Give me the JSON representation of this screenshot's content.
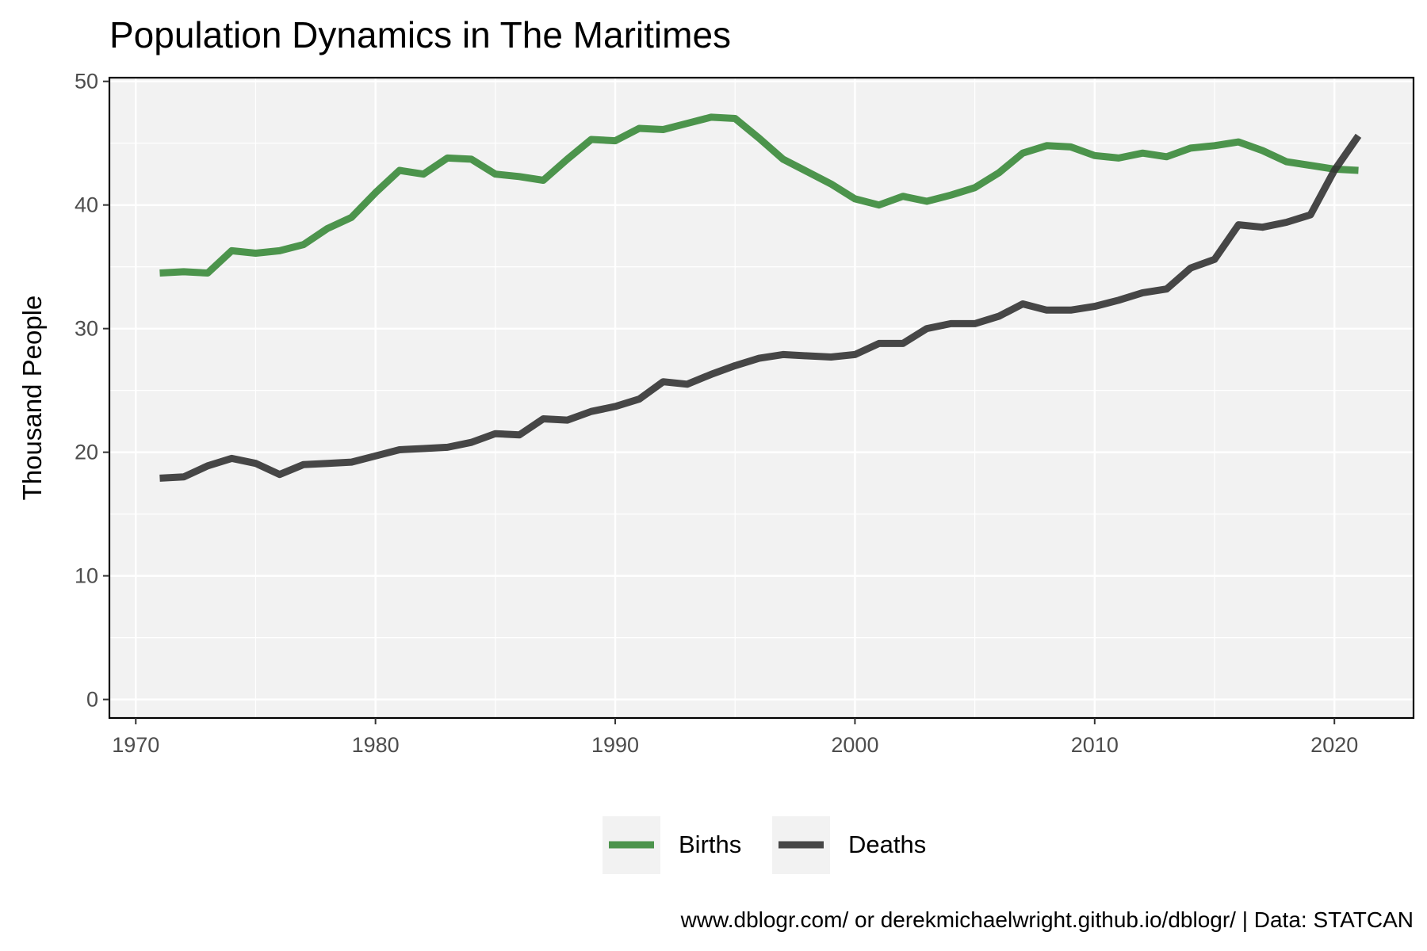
{
  "chart_data": {
    "type": "line",
    "title": "Population Dynamics in The Maritimes",
    "xlabel": "",
    "ylabel": "Thousand People",
    "caption": "www.dblogr.com/ or derekmichaelwright.github.io/dblogr/ | Data: STATCAN",
    "xlim": [
      1968.9,
      2023.3
    ],
    "ylim": [
      -1.5,
      50.3
    ],
    "x_ticks": [
      1970,
      1980,
      1990,
      2000,
      2010,
      2020
    ],
    "y_ticks": [
      0,
      10,
      20,
      30,
      40,
      50
    ],
    "x_minor": [
      1975,
      1985,
      1995,
      2005,
      2015
    ],
    "y_minor": [
      5,
      15,
      25,
      35,
      45
    ],
    "grid": true,
    "legend_position": "bottom",
    "x": [
      1971,
      1972,
      1973,
      1974,
      1975,
      1976,
      1977,
      1978,
      1979,
      1980,
      1981,
      1982,
      1983,
      1984,
      1985,
      1986,
      1987,
      1988,
      1989,
      1990,
      1991,
      1992,
      1993,
      1994,
      1995,
      1996,
      1997,
      1998,
      1999,
      2000,
      2001,
      2002,
      2003,
      2004,
      2005,
      2006,
      2007,
      2008,
      2009,
      2010,
      2011,
      2012,
      2013,
      2014,
      2015,
      2016,
      2017,
      2018,
      2019,
      2020,
      2021
    ],
    "series": [
      {
        "name": "Births",
        "color": "#3a8a3a",
        "values": [
          34.5,
          34.6,
          34.5,
          36.3,
          36.1,
          36.3,
          36.8,
          38.1,
          39.0,
          41.0,
          42.8,
          42.5,
          43.8,
          43.7,
          42.5,
          42.3,
          42.0,
          43.7,
          45.3,
          45.2,
          46.2,
          46.1,
          46.6,
          47.1,
          47.0,
          45.4,
          43.7,
          42.7,
          41.7,
          40.5,
          40.0,
          40.7,
          40.3,
          40.8,
          41.4,
          42.6,
          44.2,
          44.8,
          44.7,
          44.0,
          43.8,
          44.2,
          43.9,
          44.6,
          44.8,
          45.1,
          44.4,
          43.5,
          43.2,
          42.9,
          42.8
        ]
      },
      {
        "name": "Deaths",
        "color": "#333333",
        "values": [
          17.9,
          18.0,
          18.9,
          19.5,
          19.1,
          18.2,
          19.0,
          19.1,
          19.2,
          19.7,
          20.2,
          20.3,
          20.4,
          20.8,
          21.5,
          21.4,
          22.7,
          22.6,
          23.3,
          23.7,
          24.3,
          25.7,
          25.5,
          26.3,
          27.0,
          27.6,
          27.9,
          27.8,
          27.7,
          27.9,
          28.8,
          28.8,
          30.0,
          30.4,
          30.4,
          31.0,
          32.0,
          31.5,
          31.5,
          31.8,
          32.3,
          32.9,
          33.2,
          34.9,
          35.6,
          38.4,
          38.2,
          38.6,
          39.2,
          42.8,
          45.6
        ]
      }
    ]
  }
}
